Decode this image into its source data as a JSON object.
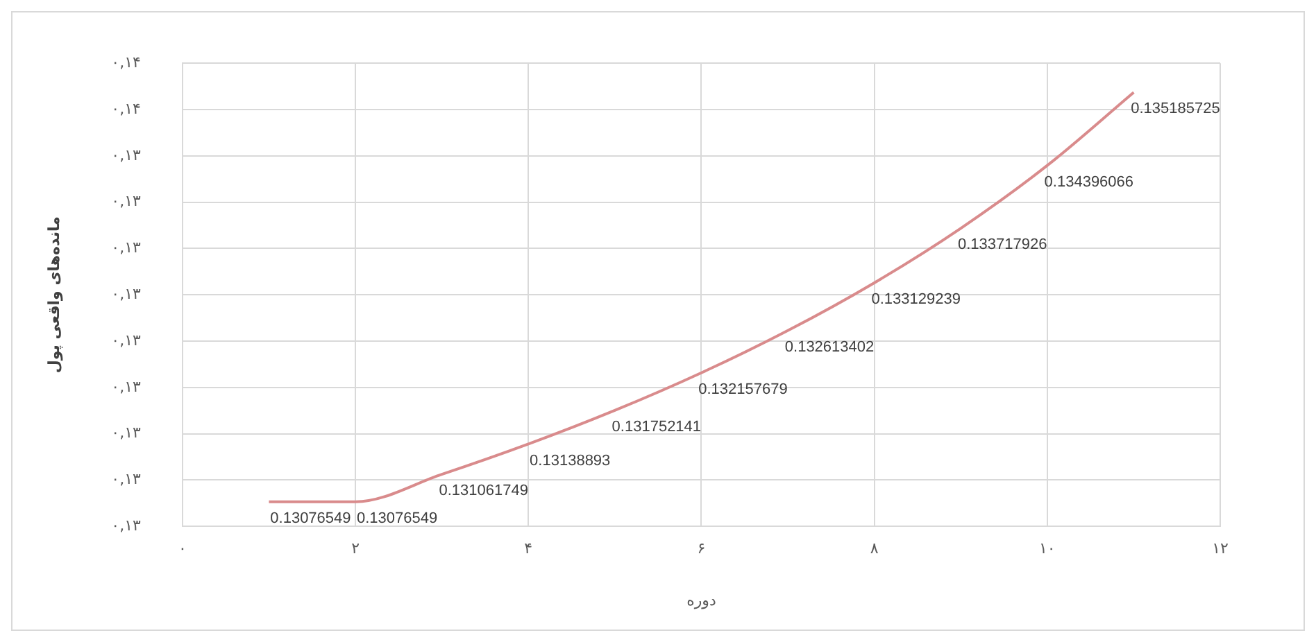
{
  "chart_data": {
    "type": "line",
    "xlabel": "دوره",
    "ylabel": "مانده‌های واقعی پول",
    "x": [
      1,
      2,
      3,
      4,
      5,
      6,
      7,
      8,
      9,
      10,
      11
    ],
    "series": [
      {
        "color": "#d98b8c",
        "values": [
          0.13076549,
          0.13076549,
          0.131061749,
          0.13138893,
          0.131752141,
          0.132157679,
          0.132613402,
          0.133129239,
          0.133717926,
          0.134396066,
          0.135185725
        ]
      }
    ],
    "xlim": [
      0,
      12
    ],
    "xticks": [
      {
        "value": 0,
        "label": "۰"
      },
      {
        "value": 2,
        "label": "۲"
      },
      {
        "value": 4,
        "label": "۴"
      },
      {
        "value": 6,
        "label": "۶"
      },
      {
        "value": 8,
        "label": "۸"
      },
      {
        "value": 10,
        "label": "۱۰"
      },
      {
        "value": 12,
        "label": "۱۲"
      }
    ],
    "ylim": [
      0.1305,
      0.1355
    ],
    "yticks": [
      {
        "value": 0.1305,
        "label": "۰,۱۳"
      },
      {
        "value": 0.131,
        "label": "۰,۱۳"
      },
      {
        "value": 0.1315,
        "label": "۰,۱۳"
      },
      {
        "value": 0.132,
        "label": "۰,۱۳"
      },
      {
        "value": 0.1325,
        "label": "۰,۱۳"
      },
      {
        "value": 0.133,
        "label": "۰,۱۳"
      },
      {
        "value": 0.1335,
        "label": "۰,۱۳"
      },
      {
        "value": 0.134,
        "label": "۰,۱۳"
      },
      {
        "value": 0.1345,
        "label": "۰,۱۳"
      },
      {
        "value": 0.135,
        "label": "۰,۱۴"
      },
      {
        "value": 0.1355,
        "label": "۰,۱۴"
      }
    ],
    "grid": true,
    "legend": false,
    "marker": "none",
    "line_style": "solid",
    "data_labels": true
  }
}
